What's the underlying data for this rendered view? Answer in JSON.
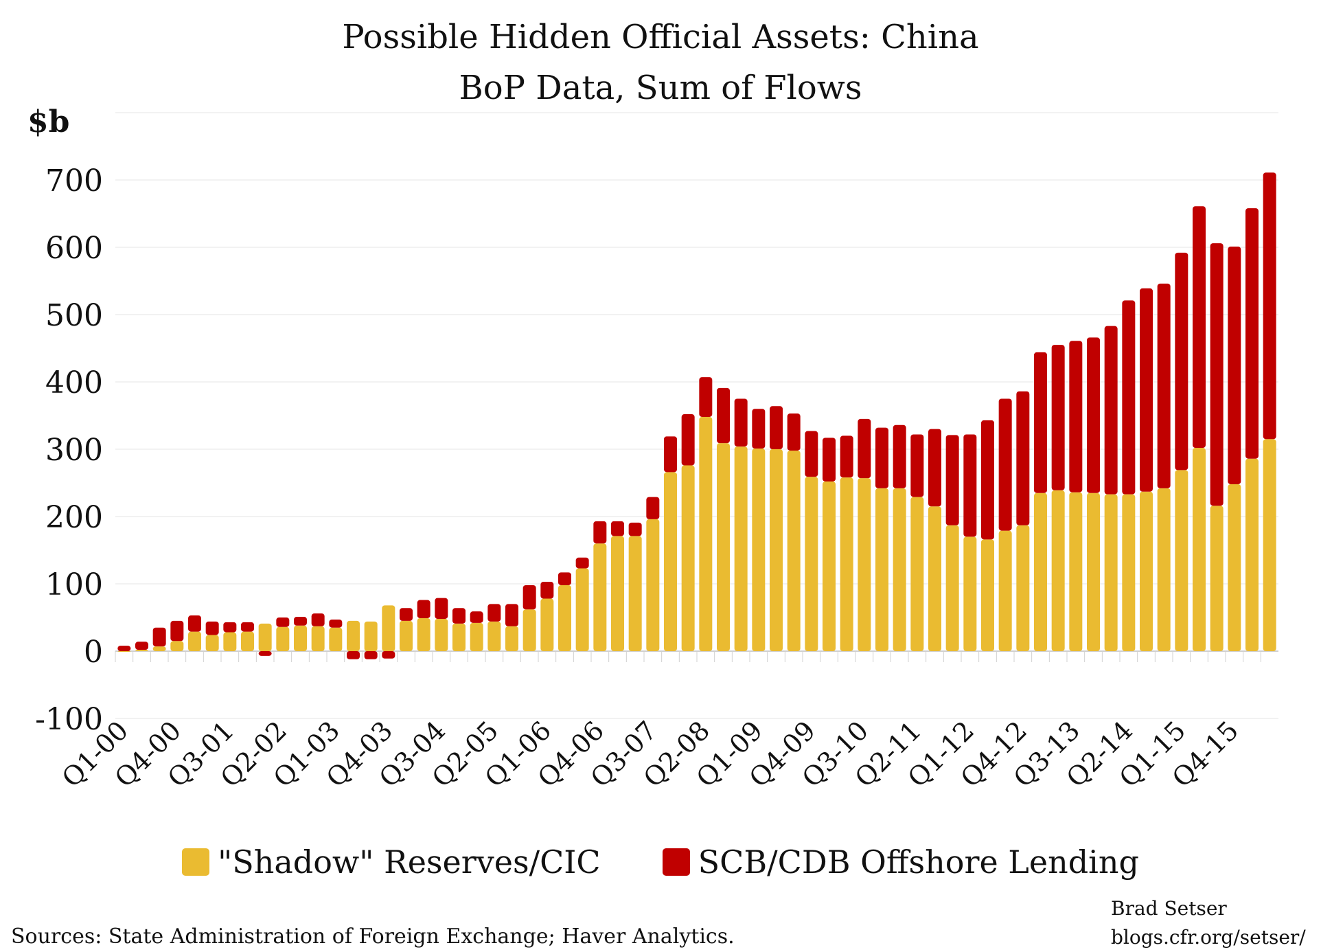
{
  "chart_data": {
    "type": "bar",
    "stacked": true,
    "title": "Possible Hidden Official Assets: China",
    "subtitle": "BoP Data, Sum of Flows",
    "ylabel": "$b",
    "xlabel": "",
    "ylim": [
      -100,
      800
    ],
    "y_ticks": [
      -100,
      0,
      100,
      200,
      300,
      400,
      500,
      600,
      700
    ],
    "grid": true,
    "x_tick_labels": [
      "Q1-00",
      "Q4-00",
      "Q3-01",
      "Q2-02",
      "Q1-03",
      "Q4-03",
      "Q3-04",
      "Q2-05",
      "Q1-06",
      "Q4-06",
      "Q3-07",
      "Q2-08",
      "Q1-09",
      "Q4-09",
      "Q3-10",
      "Q2-11",
      "Q1-12",
      "Q4-12",
      "Q3-13",
      "Q2-14",
      "Q1-15",
      "Q4-15"
    ],
    "legend_position": "bottom",
    "series": [
      {
        "name": "\"Shadow\" Reserves/CIC",
        "color": "#EABB31",
        "values": [
          0,
          2,
          7,
          15,
          29,
          24,
          28,
          29,
          41,
          36,
          38,
          37,
          35,
          45,
          44,
          68,
          45,
          49,
          48,
          41,
          42,
          44,
          37,
          62,
          78,
          98,
          123,
          160,
          171,
          171,
          196,
          266,
          276,
          348,
          309,
          304,
          301,
          300,
          298,
          259,
          252,
          258,
          257,
          242,
          242,
          229,
          215,
          187,
          170,
          166,
          179,
          187,
          235,
          239,
          236,
          235,
          233,
          233,
          237,
          242,
          269,
          302,
          216,
          248,
          286,
          315
        ]
      },
      {
        "name": "SCB/CDB Offshore Lending",
        "color": "#C00000",
        "values": [
          8,
          12,
          28,
          30,
          24,
          20,
          15,
          14,
          -7,
          14,
          13,
          19,
          12,
          -12,
          -12,
          -11,
          19,
          27,
          31,
          23,
          17,
          26,
          33,
          36,
          25,
          19,
          16,
          33,
          22,
          20,
          33,
          53,
          76,
          59,
          82,
          71,
          59,
          64,
          55,
          68,
          65,
          62,
          88,
          90,
          94,
          93,
          115,
          134,
          152,
          177,
          196,
          199,
          209,
          216,
          225,
          231,
          250,
          288,
          302,
          304,
          323,
          359,
          390,
          353,
          372,
          396
        ]
      }
    ]
  },
  "source": "Sources: State Administration of Foreign Exchange; Haver Analytics.",
  "credit": {
    "author": "Brad Setser",
    "site": "blogs.cfr.org/setser/"
  }
}
